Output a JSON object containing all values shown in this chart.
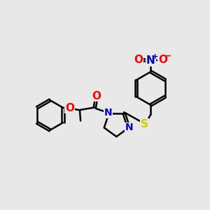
{
  "bg_color": "#e8e8e8",
  "bond_color": "#000000",
  "N_color": "#0000cc",
  "O_color": "#ff0000",
  "S_color": "#cccc00",
  "line_width": 1.8,
  "font_size": 10,
  "figsize": [
    3.0,
    3.0
  ],
  "dpi": 100,
  "xlim": [
    0,
    10
  ],
  "ylim": [
    0,
    10
  ]
}
